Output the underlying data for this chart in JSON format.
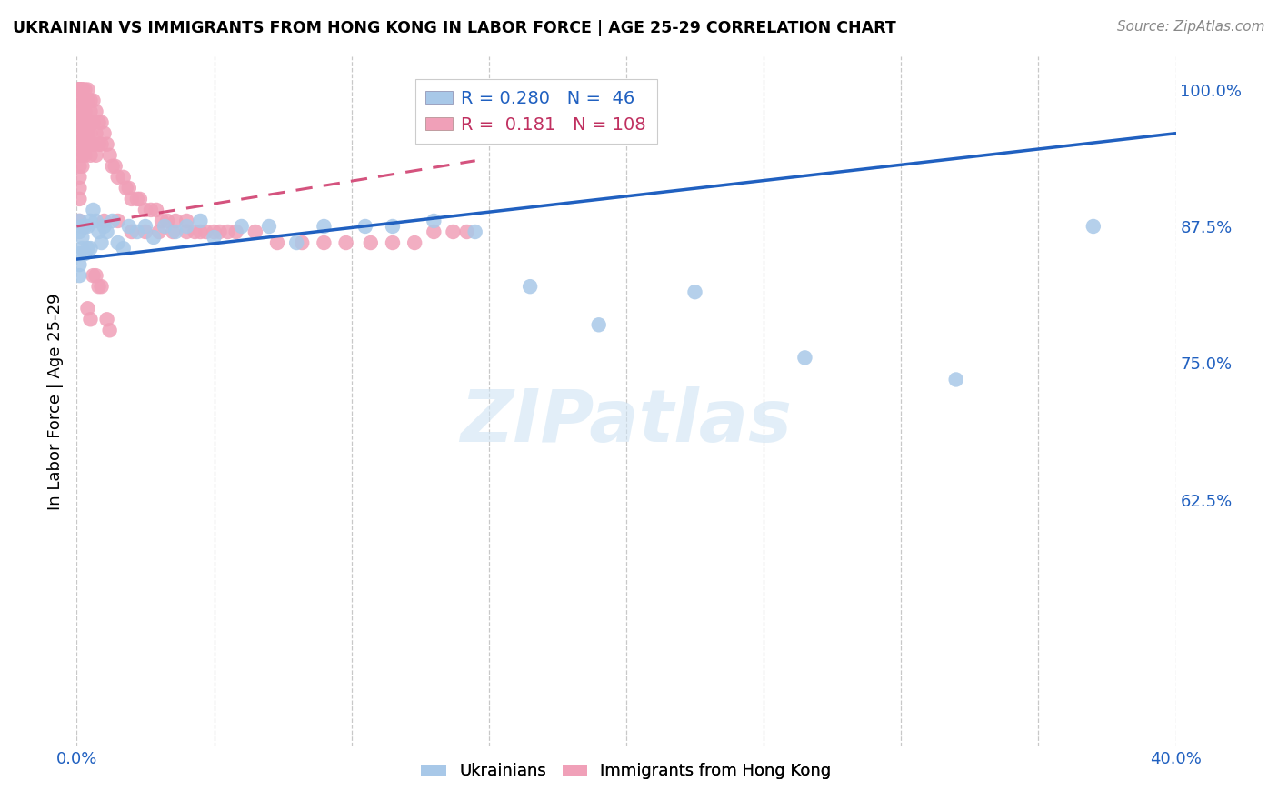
{
  "title": "UKRAINIAN VS IMMIGRANTS FROM HONG KONG IN LABOR FORCE | AGE 25-29 CORRELATION CHART",
  "source": "Source: ZipAtlas.com",
  "ylabel": "In Labor Force | Age 25-29",
  "x_min": 0.0,
  "x_max": 0.4,
  "y_min": 0.4,
  "y_max": 1.03,
  "y_ticks": [
    0.625,
    0.75,
    0.875,
    1.0
  ],
  "y_tick_labels": [
    "62.5%",
    "75.0%",
    "87.5%",
    "100.0%"
  ],
  "x_ticks": [
    0.0,
    0.05,
    0.1,
    0.15,
    0.2,
    0.25,
    0.3,
    0.35,
    0.4
  ],
  "x_tick_labels_show": [
    "0.0%",
    "",
    "",
    "",
    "",
    "",
    "",
    "",
    "40.0%"
  ],
  "ukrainian_R": 0.28,
  "ukrainian_N": 46,
  "hk_R": 0.181,
  "hk_N": 108,
  "ukrainian_color": "#a8c8e8",
  "hk_color": "#f0a0b8",
  "ukrainian_line_color": "#2060c0",
  "hk_line_color": "#d04070",
  "watermark": "ZIPatlas",
  "uk_line_x0": 0.0,
  "uk_line_y0": 0.845,
  "uk_line_x1": 0.4,
  "uk_line_y1": 0.96,
  "hk_line_x0": 0.0,
  "hk_line_y0": 0.875,
  "hk_line_x1": 0.145,
  "hk_line_y1": 0.935,
  "ukrainian_x": [
    0.001,
    0.001,
    0.001,
    0.001,
    0.001,
    0.002,
    0.002,
    0.002,
    0.003,
    0.003,
    0.004,
    0.004,
    0.005,
    0.005,
    0.006,
    0.007,
    0.008,
    0.009,
    0.01,
    0.011,
    0.013,
    0.015,
    0.017,
    0.019,
    0.022,
    0.025,
    0.028,
    0.032,
    0.036,
    0.04,
    0.045,
    0.05,
    0.06,
    0.07,
    0.08,
    0.09,
    0.105,
    0.115,
    0.13,
    0.145,
    0.165,
    0.19,
    0.225,
    0.265,
    0.32,
    0.37
  ],
  "ukrainian_y": [
    0.88,
    0.87,
    0.85,
    0.84,
    0.83,
    0.875,
    0.865,
    0.855,
    0.875,
    0.85,
    0.875,
    0.855,
    0.88,
    0.855,
    0.89,
    0.88,
    0.87,
    0.86,
    0.875,
    0.87,
    0.88,
    0.86,
    0.855,
    0.875,
    0.87,
    0.875,
    0.865,
    0.875,
    0.87,
    0.875,
    0.88,
    0.865,
    0.875,
    0.875,
    0.86,
    0.875,
    0.875,
    0.875,
    0.88,
    0.87,
    0.82,
    0.785,
    0.815,
    0.755,
    0.735,
    0.875
  ],
  "hk_x": [
    0.001,
    0.001,
    0.001,
    0.001,
    0.001,
    0.001,
    0.001,
    0.001,
    0.001,
    0.001,
    0.001,
    0.001,
    0.001,
    0.001,
    0.001,
    0.001,
    0.001,
    0.001,
    0.001,
    0.001,
    0.002,
    0.002,
    0.002,
    0.002,
    0.002,
    0.002,
    0.002,
    0.002,
    0.002,
    0.002,
    0.003,
    0.003,
    0.003,
    0.003,
    0.003,
    0.003,
    0.003,
    0.004,
    0.004,
    0.004,
    0.004,
    0.004,
    0.005,
    0.005,
    0.005,
    0.005,
    0.006,
    0.006,
    0.006,
    0.007,
    0.007,
    0.007,
    0.008,
    0.008,
    0.009,
    0.009,
    0.01,
    0.011,
    0.012,
    0.013,
    0.014,
    0.015,
    0.017,
    0.018,
    0.019,
    0.02,
    0.022,
    0.023,
    0.025,
    0.027,
    0.029,
    0.031,
    0.033,
    0.036,
    0.04,
    0.043,
    0.047,
    0.052,
    0.058,
    0.065,
    0.073,
    0.082,
    0.09,
    0.098,
    0.107,
    0.115,
    0.123,
    0.13,
    0.137,
    0.142,
    0.01,
    0.015,
    0.02,
    0.025,
    0.03,
    0.035,
    0.04,
    0.045,
    0.05,
    0.055,
    0.006,
    0.007,
    0.008,
    0.009,
    0.004,
    0.005,
    0.011,
    0.012
  ],
  "hk_y": [
    1.0,
    1.0,
    1.0,
    1.0,
    1.0,
    1.0,
    1.0,
    1.0,
    1.0,
    0.99,
    0.98,
    0.97,
    0.96,
    0.95,
    0.94,
    0.93,
    0.92,
    0.91,
    0.9,
    0.88,
    1.0,
    1.0,
    1.0,
    0.99,
    0.98,
    0.97,
    0.96,
    0.95,
    0.94,
    0.93,
    1.0,
    0.99,
    0.98,
    0.97,
    0.96,
    0.95,
    0.94,
    1.0,
    0.99,
    0.97,
    0.96,
    0.95,
    0.99,
    0.98,
    0.96,
    0.94,
    0.99,
    0.97,
    0.95,
    0.98,
    0.96,
    0.94,
    0.97,
    0.95,
    0.97,
    0.95,
    0.96,
    0.95,
    0.94,
    0.93,
    0.93,
    0.92,
    0.92,
    0.91,
    0.91,
    0.9,
    0.9,
    0.9,
    0.89,
    0.89,
    0.89,
    0.88,
    0.88,
    0.88,
    0.88,
    0.87,
    0.87,
    0.87,
    0.87,
    0.87,
    0.86,
    0.86,
    0.86,
    0.86,
    0.86,
    0.86,
    0.86,
    0.87,
    0.87,
    0.87,
    0.88,
    0.88,
    0.87,
    0.87,
    0.87,
    0.87,
    0.87,
    0.87,
    0.87,
    0.87,
    0.83,
    0.83,
    0.82,
    0.82,
    0.8,
    0.79,
    0.79,
    0.78
  ]
}
